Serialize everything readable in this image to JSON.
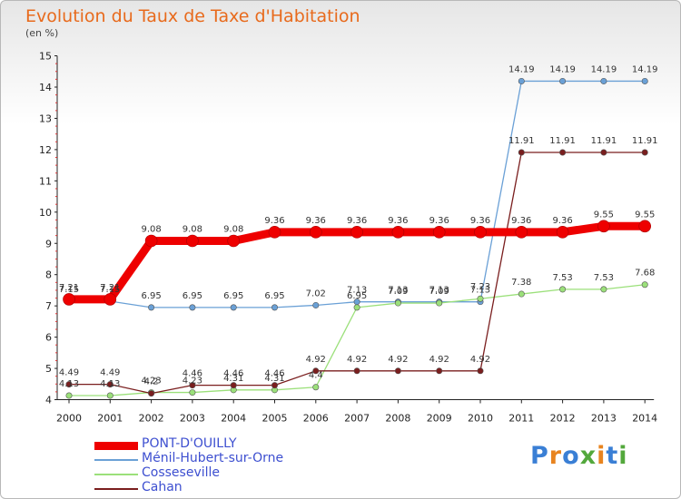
{
  "chart_data": {
    "type": "line",
    "title": "Evolution du Taux de Taxe d'Habitation",
    "ylabel": "(en %)",
    "xlabel": "",
    "ylim": [
      4,
      15
    ],
    "yticks": [
      4,
      5,
      6,
      7,
      8,
      9,
      10,
      11,
      12,
      13,
      14,
      15
    ],
    "categories": [
      "2000",
      "2001",
      "2002",
      "2003",
      "2004",
      "2005",
      "2006",
      "2007",
      "2008",
      "2009",
      "2010",
      "2011",
      "2012",
      "2013",
      "2014"
    ],
    "series": [
      {
        "name": "PONT-D'OUILLY",
        "color": "#ee0000",
        "values": [
          7.21,
          7.21,
          9.08,
          9.08,
          9.08,
          9.36,
          9.36,
          9.36,
          9.36,
          9.36,
          9.36,
          9.36,
          9.36,
          9.55,
          9.55
        ]
      },
      {
        "name": "Ménil-Hubert-sur-Orne",
        "color": "#6aa0d6",
        "values": [
          7.15,
          7.15,
          6.95,
          6.95,
          6.95,
          6.95,
          7.02,
          7.13,
          7.13,
          7.13,
          7.13,
          14.19,
          14.19,
          14.19,
          14.19
        ]
      },
      {
        "name": "Cosseseville",
        "color": "#9be07a",
        "values": [
          4.13,
          4.13,
          4.23,
          4.23,
          4.31,
          4.31,
          4.4,
          6.95,
          7.09,
          7.09,
          7.23,
          7.38,
          7.53,
          7.53,
          7.68
        ]
      },
      {
        "name": "Cahan",
        "color": "#7a1e1e",
        "values": [
          4.49,
          4.49,
          4.2,
          4.46,
          4.46,
          4.46,
          4.92,
          4.92,
          4.92,
          4.92,
          4.92,
          11.91,
          11.91,
          11.91,
          11.91
        ]
      }
    ]
  },
  "brand": {
    "logo_text": "Proxiti"
  }
}
